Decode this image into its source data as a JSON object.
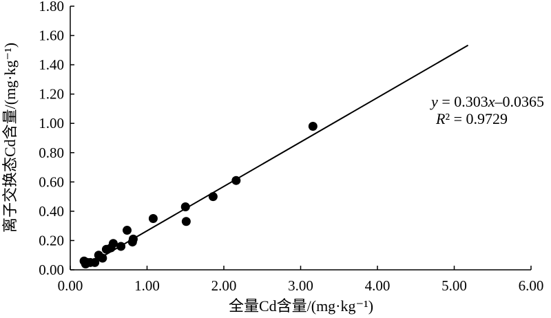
{
  "chart_data": {
    "type": "scatter",
    "title": "",
    "xlabel": "全量Cd含量/(mg·kg⁻¹)",
    "ylabel": "离子交换态Cd含量/(mg·kg⁻¹)",
    "xlim": [
      0,
      6
    ],
    "ylim": [
      0,
      1.8
    ],
    "x_ticks": [
      "0.00",
      "1.00",
      "2.00",
      "3.00",
      "4.00",
      "5.00",
      "6.00"
    ],
    "y_ticks": [
      "0.00",
      "0.20",
      "0.40",
      "0.60",
      "0.80",
      "1.00",
      "1.20",
      "1.40",
      "1.60",
      "1.80"
    ],
    "grid": false,
    "points": [
      {
        "x": 0.18,
        "y": 0.06
      },
      {
        "x": 0.2,
        "y": 0.04
      },
      {
        "x": 0.22,
        "y": 0.05
      },
      {
        "x": 0.26,
        "y": 0.05
      },
      {
        "x": 0.32,
        "y": 0.05
      },
      {
        "x": 0.37,
        "y": 0.1
      },
      {
        "x": 0.42,
        "y": 0.08
      },
      {
        "x": 0.47,
        "y": 0.14
      },
      {
        "x": 0.53,
        "y": 0.15
      },
      {
        "x": 0.56,
        "y": 0.18
      },
      {
        "x": 0.66,
        "y": 0.16
      },
      {
        "x": 0.74,
        "y": 0.27
      },
      {
        "x": 0.81,
        "y": 0.19
      },
      {
        "x": 0.82,
        "y": 0.21
      },
      {
        "x": 1.08,
        "y": 0.35
      },
      {
        "x": 1.5,
        "y": 0.43
      },
      {
        "x": 1.51,
        "y": 0.33
      },
      {
        "x": 1.86,
        "y": 0.5
      },
      {
        "x": 2.16,
        "y": 0.61
      },
      {
        "x": 3.16,
        "y": 0.98
      }
    ],
    "fit_line": {
      "slope": 0.303,
      "intercept": -0.0365,
      "x_start": 0.2,
      "x_end": 5.18
    },
    "annotation": {
      "equation": "y = 0.303x–0.0365",
      "r2": "R² = 0.9729"
    }
  }
}
